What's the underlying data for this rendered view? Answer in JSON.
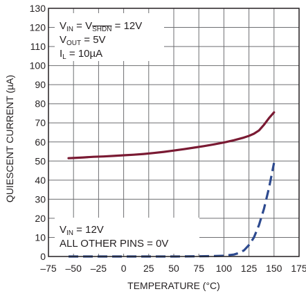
{
  "chart_data": {
    "type": "line",
    "title": "",
    "xlabel": "TEMPERATURE (°C)",
    "ylabel": "QUIESCENT CURRENT (µA)",
    "xlim": [
      -75,
      175
    ],
    "ylim": [
      0,
      130
    ],
    "xticks": [
      -75,
      -50,
      -25,
      0,
      25,
      50,
      75,
      100,
      125,
      150,
      175
    ],
    "yticks": [
      0,
      10,
      20,
      30,
      40,
      50,
      60,
      70,
      80,
      90,
      100,
      110,
      120,
      130
    ],
    "xtick_labels": [
      "–75",
      "–50",
      "–25",
      "0",
      "25",
      "50",
      "75",
      "100",
      "125",
      "150",
      "175"
    ],
    "ytick_labels": [
      "0",
      "10",
      "20",
      "30",
      "40",
      "50",
      "60",
      "70",
      "80",
      "90",
      "100",
      "110",
      "120",
      "130"
    ],
    "grid": true,
    "series": [
      {
        "style": "solid",
        "color": "#7a1a33",
        "x": [
          -55,
          -50,
          -40,
          -30,
          -20,
          -10,
          0,
          10,
          20,
          30,
          40,
          50,
          60,
          70,
          80,
          90,
          100,
          110,
          120,
          125,
          130,
          135,
          140,
          145,
          150
        ],
        "y": [
          51.5,
          51.6,
          51.9,
          52.2,
          52.4,
          52.7,
          53.0,
          53.3,
          53.7,
          54.2,
          54.8,
          55.5,
          56.2,
          57.0,
          57.8,
          58.7,
          59.7,
          60.9,
          62.3,
          63.2,
          64.3,
          66.0,
          69.0,
          72.5,
          75.5
        ]
      },
      {
        "style": "dashed",
        "color": "#2d4a8f",
        "x": [
          -55,
          -25,
          0,
          25,
          50,
          75,
          90,
          100,
          110,
          115,
          120,
          125,
          130,
          135,
          140,
          145,
          150
        ],
        "y": [
          0,
          0,
          0,
          0,
          0,
          0.1,
          0.2,
          0.4,
          1.0,
          1.8,
          3.2,
          6.0,
          10.0,
          16.5,
          25.0,
          36.0,
          49.0
        ]
      }
    ],
    "annotations": {
      "top_box": {
        "line1": {
          "a": "V",
          "a_sub": "IN",
          "b": " = V",
          "b_sub": "SHDN",
          "c": " = 12V"
        },
        "line2": {
          "a": "V",
          "a_sub": "OUT",
          "b": " = 5V"
        },
        "line3": {
          "a": "I",
          "a_sub": "L",
          "b": " = 10µA"
        }
      },
      "bottom_box": {
        "line1": {
          "a": "V",
          "a_sub": "IN",
          "b": " = 12V"
        },
        "line2": "ALL OTHER PINS = 0V"
      }
    }
  }
}
